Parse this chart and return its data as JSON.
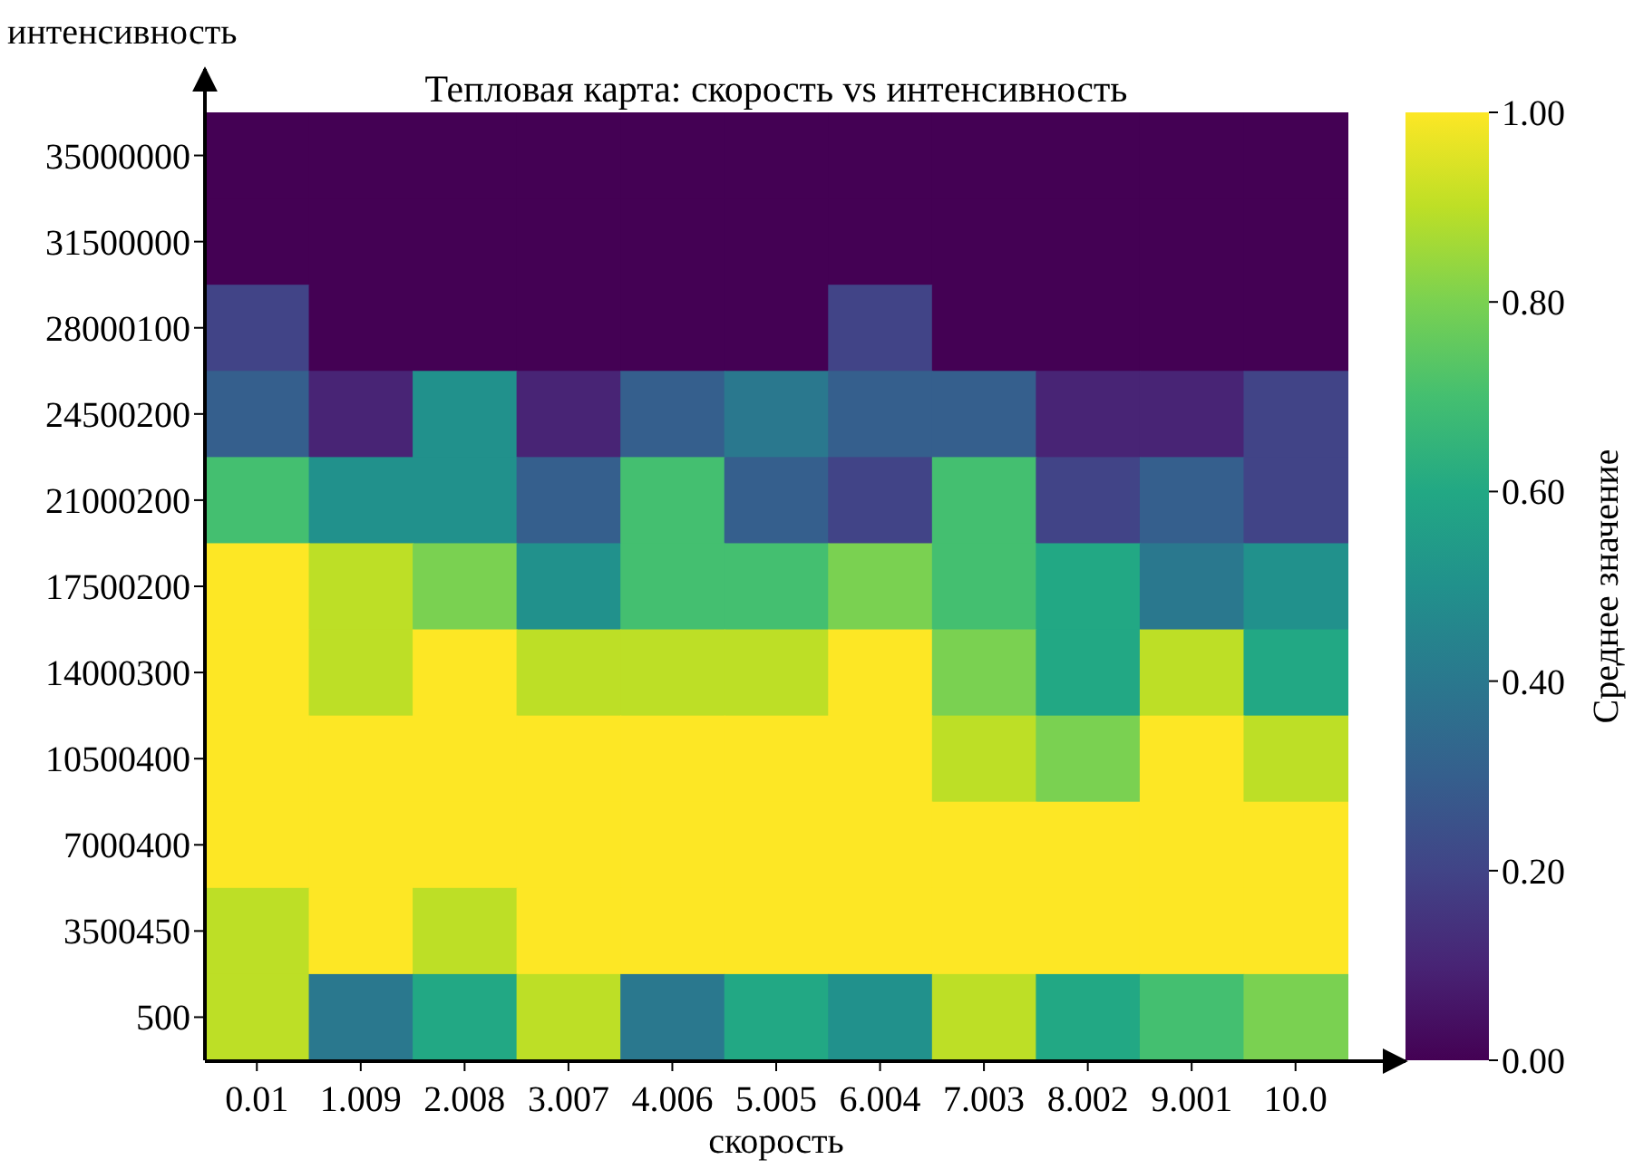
{
  "chart_data": {
    "type": "heatmap",
    "title": "Тепловая карта: скорость vs интенсивность",
    "xlabel": "скорость",
    "ylabel": "интенсивность",
    "clabel": "Среднее значение",
    "categories": [
      "0.01",
      "1.009",
      "2.008",
      "3.007",
      "4.006",
      "5.005",
      "6.004",
      "7.003",
      "8.002",
      "9.001",
      "10.0"
    ],
    "y_categories": [
      "35000000",
      "31500000",
      "28000100",
      "24500200",
      "21000200",
      "17500200",
      "14000300",
      "10500400",
      "7000400",
      "3500450",
      "500"
    ],
    "cells": [
      [
        0,
        0,
        0,
        0,
        0,
        0,
        0,
        0,
        0,
        0,
        0
      ],
      [
        0,
        0,
        0,
        0,
        0,
        0,
        0,
        0,
        0,
        0,
        0
      ],
      [
        0.2,
        0,
        0,
        0,
        0,
        0,
        0.2,
        0,
        0,
        0,
        0
      ],
      [
        0.3,
        0.1,
        0.5,
        0.1,
        0.3,
        0.4,
        0.3,
        0.3,
        0.1,
        0.1,
        0.2
      ],
      [
        0.7,
        0.5,
        0.5,
        0.3,
        0.7,
        0.3,
        0.2,
        0.7,
        0.2,
        0.3,
        0.2
      ],
      [
        1,
        0.9,
        0.8,
        0.5,
        0.7,
        0.7,
        0.8,
        0.7,
        0.6,
        0.4,
        0.5
      ],
      [
        1,
        0.9,
        1,
        0.9,
        0.9,
        0.9,
        1,
        0.8,
        0.6,
        0.9,
        0.6
      ],
      [
        1,
        1,
        1,
        1,
        1,
        1,
        1,
        0.9,
        0.8,
        1,
        0.9
      ],
      [
        1,
        1,
        1,
        1,
        1,
        1,
        1,
        1,
        1,
        1,
        1
      ],
      [
        0.9,
        1,
        0.9,
        1,
        1,
        1,
        1,
        1,
        1,
        1,
        1
      ],
      [
        0.9,
        0.4,
        0.6,
        0.9,
        0.4,
        0.6,
        0.5,
        0.9,
        0.6,
        0.7,
        0.8
      ]
    ],
    "clim": [
      0,
      1
    ],
    "cticks": [
      {
        "value": 0,
        "label": "0.00"
      },
      {
        "value": 0.2,
        "label": "0.20"
      },
      {
        "value": 0.4,
        "label": "0.40"
      },
      {
        "value": 0.6,
        "label": "0.60"
      },
      {
        "value": 0.8,
        "label": "0.80"
      },
      {
        "value": 1,
        "label": "1.00"
      }
    ]
  }
}
